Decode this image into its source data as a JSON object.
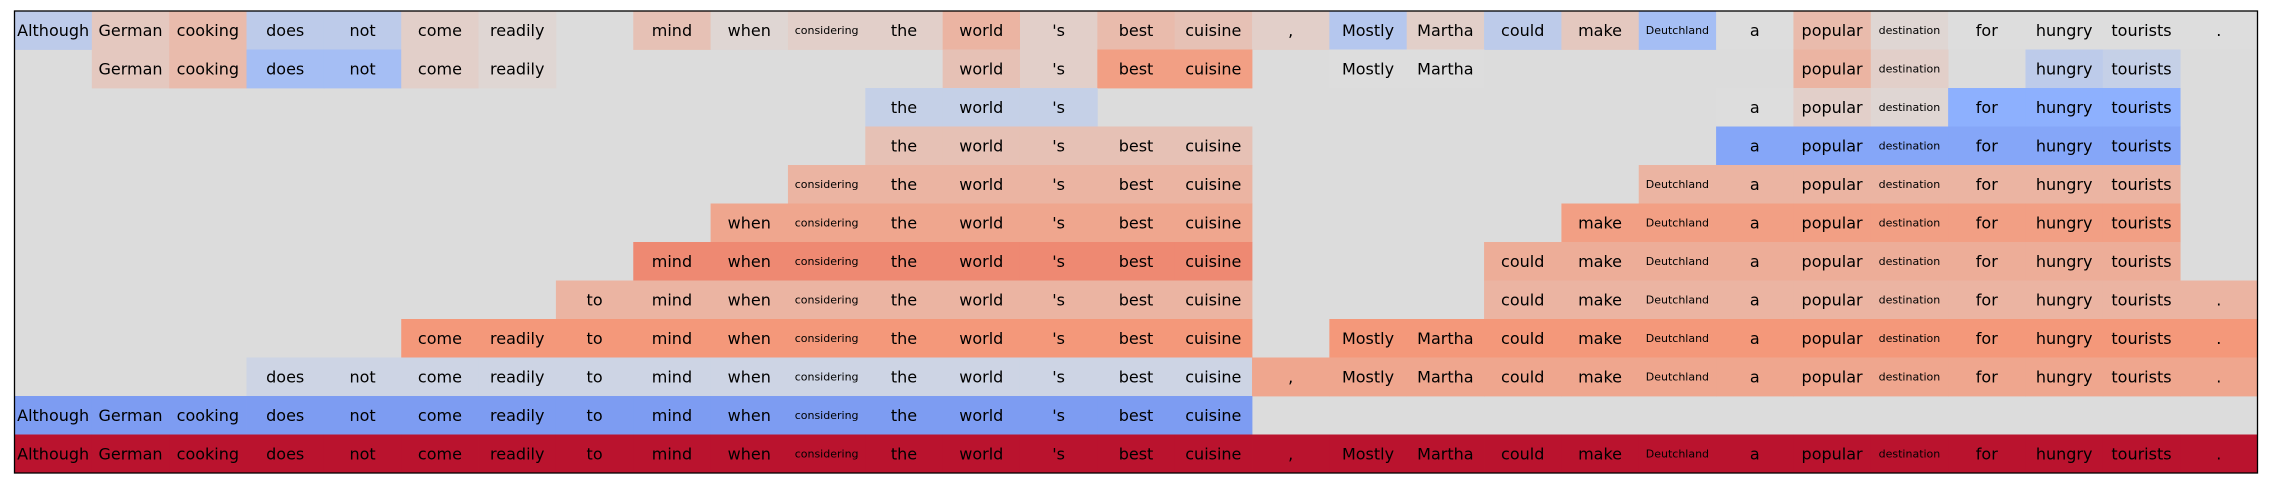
{
  "chart_data": {
    "type": "heatmap",
    "title": "",
    "xlabel": "",
    "ylabel": "",
    "tokens": [
      "Although",
      "German",
      "cooking",
      "does",
      "not",
      "come",
      "readily",
      "to",
      "mind",
      "when",
      "considering",
      "the",
      "world",
      "'s",
      "best",
      "cuisine",
      ",",
      "Mostly",
      "Martha",
      "could",
      "make",
      "Deutchland",
      "a",
      "popular",
      "destination",
      "for",
      "hungry",
      "tourists",
      "."
    ],
    "colormap": "coolwarm",
    "value_range": [
      -1,
      1
    ],
    "empty_cell_color": "#dcdcdc",
    "frame_color": "#000000",
    "rows": [
      [
        -0.2,
        0.15,
        0.25,
        -0.2,
        -0.2,
        0.1,
        0.05,
        null,
        0.2,
        0.05,
        0.1,
        0.1,
        0.3,
        0.1,
        0.25,
        0.2,
        0.1,
        -0.25,
        0.1,
        -0.2,
        0.15,
        -0.35,
        0,
        0.25,
        0.05,
        0,
        0,
        0,
        0
      ],
      [
        null,
        0.15,
        0.25,
        -0.35,
        -0.35,
        0.1,
        0.05,
        null,
        null,
        null,
        null,
        null,
        0.2,
        0.1,
        0.45,
        0.45,
        null,
        0,
        0,
        null,
        null,
        null,
        null,
        0.3,
        0.1,
        null,
        -0.2,
        -0.15,
        null
      ],
      [
        null,
        null,
        null,
        null,
        null,
        null,
        null,
        null,
        null,
        null,
        null,
        -0.15,
        -0.15,
        -0.15,
        null,
        null,
        null,
        null,
        null,
        null,
        null,
        null,
        0,
        0.1,
        0.05,
        -0.5,
        -0.5,
        -0.5,
        null
      ],
      [
        null,
        null,
        null,
        null,
        null,
        null,
        null,
        null,
        null,
        null,
        null,
        0.2,
        0.2,
        0.2,
        0.2,
        0.2,
        null,
        null,
        null,
        null,
        null,
        null,
        -0.55,
        -0.55,
        -0.55,
        -0.55,
        -0.55,
        -0.55,
        null
      ],
      [
        null,
        null,
        null,
        null,
        null,
        null,
        null,
        null,
        null,
        null,
        0.3,
        0.3,
        0.3,
        0.3,
        0.3,
        0.3,
        null,
        null,
        null,
        null,
        null,
        0.3,
        0.3,
        0.3,
        0.3,
        0.3,
        0.3,
        0.3,
        null
      ],
      [
        null,
        null,
        null,
        null,
        null,
        null,
        null,
        null,
        null,
        0.4,
        0.4,
        0.4,
        0.4,
        0.4,
        0.4,
        0.4,
        null,
        null,
        null,
        null,
        0.45,
        0.45,
        0.45,
        0.45,
        0.45,
        0.45,
        0.45,
        0.45,
        null
      ],
      [
        null,
        null,
        null,
        null,
        null,
        null,
        null,
        null,
        0.55,
        0.55,
        0.55,
        0.55,
        0.55,
        0.55,
        0.55,
        0.55,
        null,
        null,
        null,
        0.35,
        0.35,
        0.35,
        0.35,
        0.35,
        0.35,
        0.35,
        0.35,
        0.35,
        null
      ],
      [
        null,
        null,
        null,
        null,
        null,
        null,
        null,
        0.3,
        0.3,
        0.3,
        0.3,
        0.3,
        0.3,
        0.3,
        0.3,
        0.3,
        null,
        null,
        null,
        0.3,
        0.3,
        0.3,
        0.3,
        0.3,
        0.3,
        0.3,
        0.3,
        0.3,
        0.3
      ],
      [
        null,
        null,
        null,
        null,
        null,
        0.5,
        0.5,
        0.5,
        0.5,
        0.5,
        0.5,
        0.5,
        0.5,
        0.5,
        0.5,
        0.5,
        null,
        0.5,
        0.5,
        0.5,
        0.5,
        0.5,
        0.5,
        0.5,
        0.5,
        0.5,
        0.5,
        0.5,
        0.5
      ],
      [
        null,
        null,
        null,
        -0.1,
        -0.1,
        -0.1,
        -0.1,
        -0.1,
        -0.1,
        -0.1,
        -0.1,
        -0.1,
        -0.1,
        -0.1,
        -0.1,
        -0.1,
        0.4,
        0.4,
        0.4,
        0.4,
        0.4,
        0.4,
        0.4,
        0.4,
        0.4,
        0.4,
        0.4,
        0.4,
        0.4
      ],
      [
        -0.6,
        -0.6,
        -0.6,
        -0.6,
        -0.6,
        -0.6,
        -0.6,
        -0.6,
        -0.6,
        -0.6,
        -0.6,
        -0.6,
        -0.6,
        -0.6,
        -0.6,
        -0.6,
        null,
        null,
        null,
        null,
        null,
        null,
        null,
        null,
        null,
        null,
        null,
        null,
        null
      ],
      [
        0.95,
        0.95,
        0.95,
        0.95,
        0.95,
        0.95,
        0.95,
        0.95,
        0.95,
        0.95,
        0.95,
        0.95,
        0.95,
        0.95,
        0.95,
        0.95,
        0.95,
        0.95,
        0.95,
        0.95,
        0.95,
        0.95,
        0.95,
        0.95,
        0.95,
        0.95,
        0.95,
        0.95,
        0.95
      ]
    ]
  }
}
